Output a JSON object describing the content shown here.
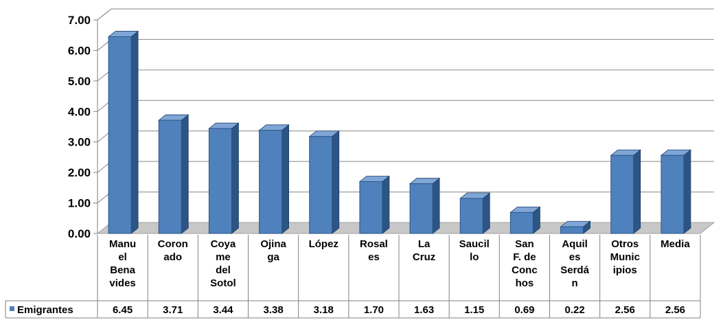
{
  "chart_data": {
    "type": "bar",
    "categories": [
      "Manu el Bena vides",
      "Coron ado",
      "Coya me del Sotol",
      "Ojina ga",
      "López",
      "Rosal es",
      "La Cruz",
      "Saucil lo",
      "San F. de Conc hos",
      "Aquil es Serdá n",
      "Otros Munic ipios",
      "Media"
    ],
    "category_lines": [
      [
        "Manu",
        "el",
        "Bena",
        "vides"
      ],
      [
        "Coron",
        "ado"
      ],
      [
        "Coya",
        "me",
        "del",
        "Sotol"
      ],
      [
        "Ojina",
        "ga"
      ],
      [
        "López"
      ],
      [
        "Rosal",
        "es"
      ],
      [
        "La",
        "Cruz"
      ],
      [
        "Saucil",
        "lo"
      ],
      [
        "San",
        "F. de",
        "Conc",
        "hos"
      ],
      [
        "Aquil",
        "es",
        "Serdá",
        "n"
      ],
      [
        "Otros",
        "Munic",
        "ipios"
      ],
      [
        "Media"
      ]
    ],
    "series": [
      {
        "name": "Emigrantes",
        "values": [
          6.45,
          3.71,
          3.44,
          3.38,
          3.18,
          1.7,
          1.63,
          1.15,
          0.69,
          0.22,
          2.56,
          2.56
        ],
        "value_labels": [
          "6.45",
          "3.71",
          "3.44",
          "3.38",
          "3.18",
          "1.70",
          "1.63",
          "1.15",
          "0.69",
          "0.22",
          "2.56",
          "2.56"
        ],
        "color": "#4f81bd"
      }
    ],
    "ylim": [
      0,
      7
    ],
    "yticks": [
      "0.00",
      "1.00",
      "2.00",
      "3.00",
      "4.00",
      "5.00",
      "6.00",
      "7.00"
    ],
    "grid": true,
    "legend": "data-table",
    "title": "",
    "xlabel": "",
    "ylabel": ""
  }
}
